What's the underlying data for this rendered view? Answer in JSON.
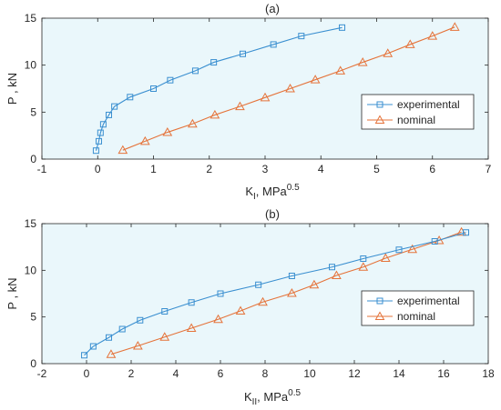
{
  "chart_data": [
    {
      "type": "line",
      "title": "(a)",
      "xlabel": "K",
      "xlabel_sub": "I",
      "xlabel_rest": ", MPa",
      "xlabel_sup": "0.5",
      "ylabel": "P , kN",
      "xlim": [
        -1,
        7
      ],
      "ylim": [
        0,
        15
      ],
      "xticks": [
        "-1",
        "0",
        "1",
        "2",
        "3",
        "4",
        "5",
        "6",
        "7"
      ],
      "yticks": [
        "0",
        "5",
        "10",
        "15"
      ],
      "grid": false,
      "legend_position": "right",
      "colors": {
        "experimental": "#3a8fd0",
        "nominal": "#e5733a",
        "plot_bg": "#eaf7fb"
      },
      "series": [
        {
          "name": "experimental",
          "marker": "square",
          "x": [
            -0.03,
            0.02,
            0.05,
            0.1,
            0.2,
            0.3,
            0.58,
            1.0,
            1.3,
            1.75,
            2.08,
            2.6,
            3.15,
            3.65,
            4.38
          ],
          "y": [
            0.9,
            1.9,
            2.8,
            3.7,
            4.7,
            5.6,
            6.6,
            7.5,
            8.4,
            9.4,
            10.3,
            11.2,
            12.2,
            13.1,
            14.0
          ]
        },
        {
          "name": "nominal",
          "marker": "triangle",
          "x": [
            0.45,
            0.85,
            1.25,
            1.7,
            2.1,
            2.55,
            3.0,
            3.45,
            3.9,
            4.35,
            4.75,
            5.2,
            5.6,
            6.0,
            6.4
          ],
          "y": [
            0.95,
            1.9,
            2.85,
            3.75,
            4.7,
            5.6,
            6.55,
            7.5,
            8.45,
            9.4,
            10.3,
            11.25,
            12.2,
            13.1,
            14.05
          ]
        }
      ]
    },
    {
      "type": "line",
      "title": "(b)",
      "xlabel": "K",
      "xlabel_sub": "II",
      "xlabel_rest": ", MPa",
      "xlabel_sup": "0.5",
      "ylabel": "P , kN",
      "xlim": [
        -2,
        18
      ],
      "ylim": [
        0,
        15
      ],
      "xticks": [
        "-2",
        "0",
        "2",
        "4",
        "6",
        "8",
        "10",
        "12",
        "14",
        "16",
        "18"
      ],
      "yticks": [
        "0",
        "5",
        "10",
        "15"
      ],
      "grid": false,
      "legend_position": "right",
      "colors": {
        "experimental": "#3a8fd0",
        "nominal": "#e5733a",
        "plot_bg": "#eaf7fb"
      },
      "series": [
        {
          "name": "experimental",
          "marker": "square",
          "x": [
            -0.1,
            0.3,
            1.0,
            1.6,
            2.4,
            3.5,
            4.7,
            6.0,
            7.7,
            9.2,
            11.0,
            12.4,
            14.0,
            15.6,
            17.0
          ],
          "y": [
            0.9,
            1.85,
            2.8,
            3.7,
            4.65,
            5.6,
            6.55,
            7.5,
            8.45,
            9.4,
            10.35,
            11.25,
            12.2,
            13.1,
            14.05
          ]
        },
        {
          "name": "nominal",
          "marker": "triangle",
          "x": [
            1.1,
            2.3,
            3.5,
            4.7,
            5.9,
            6.9,
            7.9,
            9.2,
            10.2,
            11.2,
            12.4,
            13.4,
            14.6,
            15.8,
            16.8
          ],
          "y": [
            1.0,
            1.9,
            2.85,
            3.8,
            4.75,
            5.65,
            6.6,
            7.55,
            8.45,
            9.45,
            10.35,
            11.3,
            12.25,
            13.2,
            14.1
          ]
        }
      ]
    }
  ]
}
